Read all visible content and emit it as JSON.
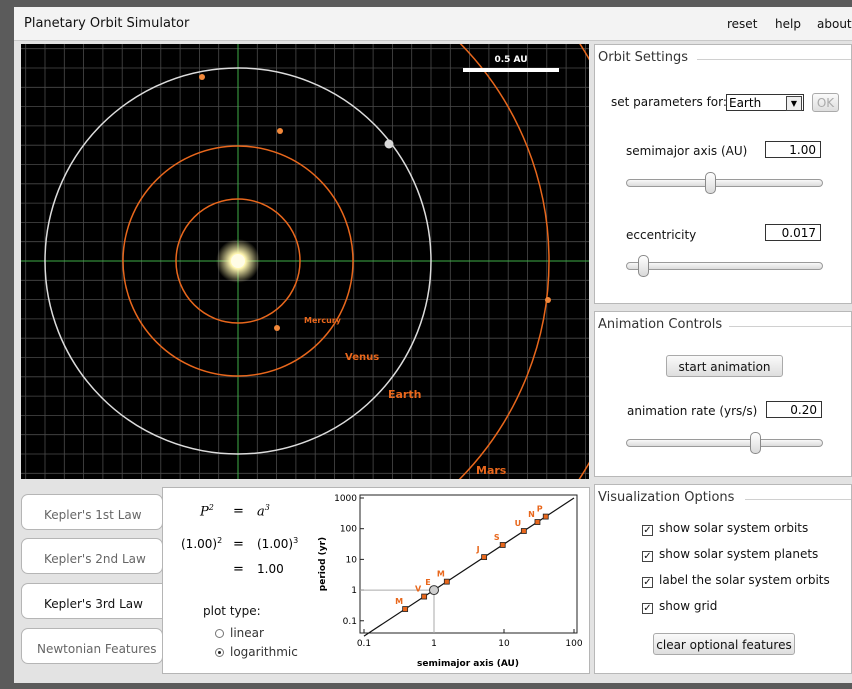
{
  "app": {
    "title": "Planetary Orbit Simulator",
    "menu": [
      "reset",
      "help",
      "about"
    ]
  },
  "sim": {
    "scale_label": "0.5 AU",
    "orbit_labels": {
      "mercury": "Mercury",
      "venus": "Venus",
      "earth": "Earth",
      "mars": "Mars"
    },
    "colors": {
      "orbit": "#e8671c",
      "selected_orbit": "#d9d9d9",
      "grid": "#4a4a4a",
      "axis": "#3fae49",
      "sun": "#fffbe0"
    }
  },
  "orbit_settings": {
    "title": "Orbit Settings",
    "set_params_label": "set parameters for:",
    "planet_select": "Earth",
    "ok_label": "OK",
    "semimajor_label": "semimajor axis (AU)",
    "semimajor_value": "1.00",
    "semimajor_slider_level": 0.42,
    "eccentricity_label": "eccentricity",
    "eccentricity_value": "0.017",
    "eccentricity_slider_level": 0.05
  },
  "animation": {
    "title": "Animation Controls",
    "start_label": "start animation",
    "rate_label": "animation rate (yrs/s)",
    "rate_value": "0.20",
    "rate_slider_level": 0.67
  },
  "viz": {
    "title": "Visualization Options",
    "options": [
      {
        "label": "show solar system orbits",
        "checked": true
      },
      {
        "label": "show solar system planets",
        "checked": true
      },
      {
        "label": "label the solar system orbits",
        "checked": true
      },
      {
        "label": "show grid",
        "checked": true
      }
    ],
    "clear_label": "clear optional features"
  },
  "tabs": [
    {
      "label": "Kepler's 1st Law",
      "active": false
    },
    {
      "label": "Kepler's 2nd Law",
      "active": false
    },
    {
      "label": "Kepler's 3rd Law",
      "active": true
    },
    {
      "label": "Newtonian Features",
      "active": false
    }
  ],
  "kepler3": {
    "eq1_left": "P",
    "eq1_exp": "2",
    "eq1_right": "a",
    "eq1_rexp": "3",
    "eq2_left": "(1.00)",
    "eq2_lexp": "2",
    "eq2_right": "(1.00)",
    "eq2_rexp": "3",
    "eq_sign": "=",
    "eq3_value": "1.00",
    "plot_type_label": "plot type:",
    "options": [
      {
        "label": "linear",
        "selected": false
      },
      {
        "label": "logarithmic",
        "selected": true
      }
    ]
  },
  "chart_data": {
    "type": "scatter",
    "xlabel": "semimajor axis (AU)",
    "ylabel": "period (yr)",
    "x_scale": "log",
    "y_scale": "log",
    "xlim": [
      0.1,
      100
    ],
    "ylim": [
      0.05,
      1000
    ],
    "x_ticks": [
      "0.1",
      "1",
      "10",
      "100"
    ],
    "y_ticks": [
      "1000",
      "100",
      "10",
      "1",
      "0.1"
    ],
    "points": [
      {
        "label": "M",
        "x": 0.387,
        "y": 0.241
      },
      {
        "label": "V",
        "x": 0.723,
        "y": 0.615
      },
      {
        "label": "E",
        "x": 1.0,
        "y": 1.0
      },
      {
        "label": "M",
        "x": 1.524,
        "y": 1.881
      },
      {
        "label": "J",
        "x": 5.2,
        "y": 11.86
      },
      {
        "label": "S",
        "x": 9.58,
        "y": 29.46
      },
      {
        "label": "U",
        "x": 19.2,
        "y": 84.0
      },
      {
        "label": "N",
        "x": 30.05,
        "y": 164.8
      },
      {
        "label": "P",
        "x": 39.48,
        "y": 248.0
      }
    ],
    "selected": {
      "x": 1.0,
      "y": 1.0
    }
  }
}
